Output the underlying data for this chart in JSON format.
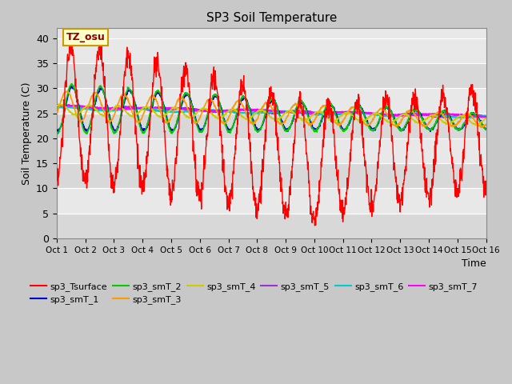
{
  "title": "SP3 Soil Temperature",
  "ylabel": "Soil Temperature (C)",
  "xlabel": "Time",
  "annotation": "TZ_osu",
  "fig_bg_color": "#c8c8c8",
  "plot_bg_color": "#e8e8e8",
  "band_colors": [
    "#d8d8d8",
    "#e8e8e8"
  ],
  "ylim": [
    0,
    42
  ],
  "yticks": [
    0,
    5,
    10,
    15,
    20,
    25,
    30,
    35,
    40
  ],
  "x_labels": [
    "Oct 1",
    "Oct 2",
    "Oct 3",
    "Oct 4",
    "Oct 5",
    "Oct 6",
    "Oct 7",
    "Oct 8",
    "Oct 9",
    "Oct 10",
    "Oct 11",
    "Oct 12",
    "Oct 13",
    "Oct 14",
    "Oct 15",
    "Oct 16"
  ],
  "series_colors": {
    "sp3_Tsurface": "#ff0000",
    "sp3_smT_1": "#0000cc",
    "sp3_smT_2": "#00cc00",
    "sp3_smT_3": "#ff9900",
    "sp3_smT_4": "#cccc00",
    "sp3_smT_5": "#9933cc",
    "sp3_smT_6": "#00cccc",
    "sp3_smT_7": "#ff00ff"
  }
}
